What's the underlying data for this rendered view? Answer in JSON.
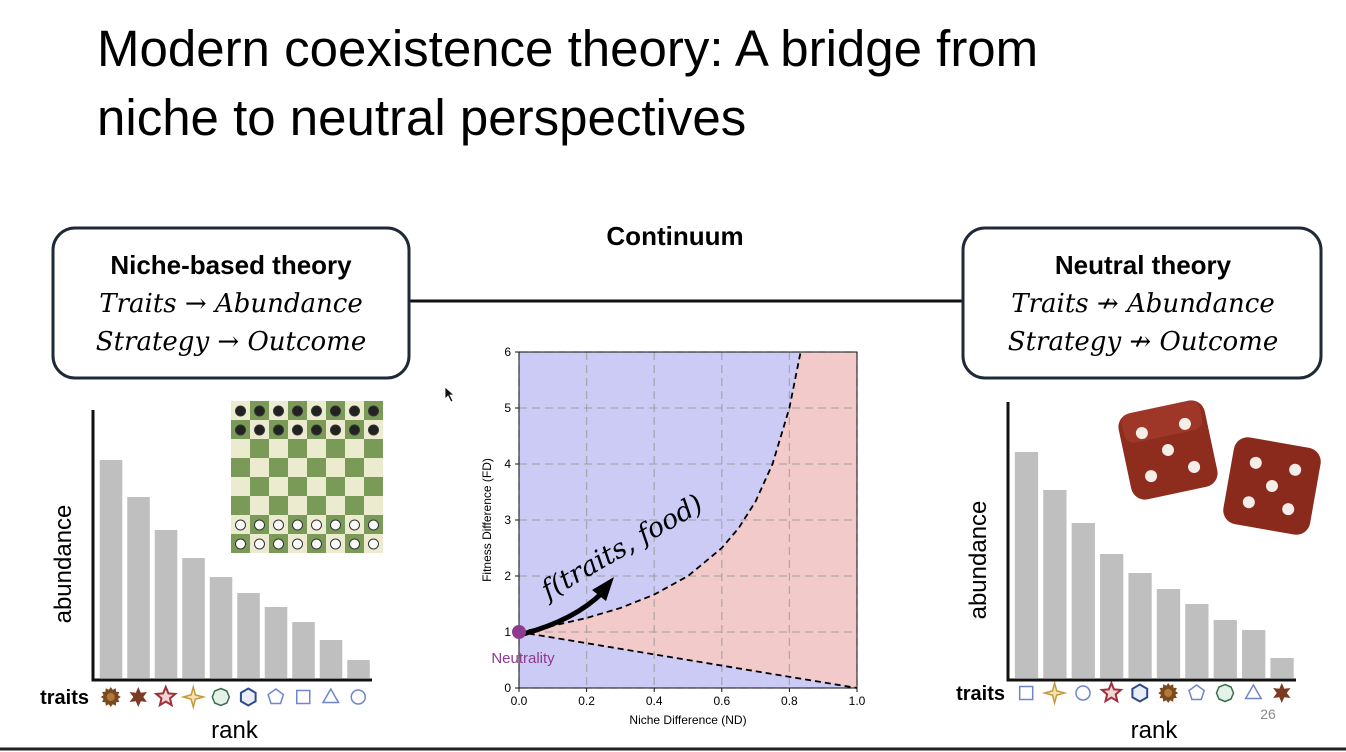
{
  "slide": {
    "title": [
      "Modern coexistence theory: A bridge from",
      "niche to neutral perspectives"
    ],
    "continuum": "Continuum",
    "page_number": "26"
  },
  "niche_box": {
    "heading": "Niche-based theory",
    "lines": [
      "Traits → Abundance",
      "Strategy → Outcome"
    ]
  },
  "neutral_box": {
    "heading": "Neutral theory",
    "lines": [
      "Traits ↛ Abundance",
      "Strategy ↛ Outcome"
    ]
  },
  "chart_data": [
    {
      "type": "bar",
      "categories": [
        null,
        null,
        null,
        null,
        null,
        null,
        null,
        null,
        null,
        null
      ],
      "values": [
        218,
        181,
        148,
        120,
        101,
        85,
        71,
        56,
        38,
        18
      ],
      "color": "#bfbfbf",
      "ylim": [
        0,
        268
      ],
      "ylabel": "abundance",
      "xlabel": "rank",
      "trait_label": "traits"
    },
    {
      "type": "line",
      "xlabel": "Niche Difference (ND)",
      "ylabel": "Fitness Difference (FD)",
      "xlim": [
        0,
        1
      ],
      "ylim": [
        0,
        6
      ],
      "xticks": [
        {
          "value": 0,
          "label": "0.0"
        },
        {
          "value": 0.2,
          "label": "0.2"
        },
        {
          "value": 0.4,
          "label": "0.4"
        },
        {
          "value": 0.6,
          "label": "0.6"
        },
        {
          "value": 0.8,
          "label": "0.8"
        },
        {
          "value": 1,
          "label": "1.0"
        }
      ],
      "yticks": [
        0,
        1,
        2,
        3,
        4,
        5,
        6
      ],
      "grid": true,
      "outside_color": "#cbcbf6",
      "between_color": "#f3caca",
      "series": [
        {
          "color": "#000000",
          "x": [
            0,
            0.1,
            0.2,
            0.3,
            0.4,
            0.5,
            0.6,
            0.65,
            0.7,
            0.75,
            0.8,
            0.833
          ],
          "values": [
            1,
            1.111,
            1.25,
            1.429,
            1.667,
            2,
            2.5,
            2.857,
            3.333,
            4,
            5,
            6
          ]
        },
        {
          "color": "#000000",
          "x": [
            0,
            1
          ],
          "values": [
            1,
            0
          ]
        }
      ],
      "point": {
        "x": 0,
        "y": 1,
        "label": "Neutrality",
        "color": "#8e3a8e"
      },
      "annotation": "f(traits, food)"
    },
    {
      "type": "bar",
      "categories": [
        null,
        null,
        null,
        null,
        null,
        null,
        null,
        null,
        null,
        null
      ],
      "values": [
        226,
        188,
        155,
        124,
        105,
        89,
        74,
        58,
        48,
        20
      ],
      "color": "#bfbfbf",
      "ylim": [
        0,
        276
      ],
      "ylabel": "abundance",
      "xlabel": "rank",
      "trait_label": "traits"
    }
  ]
}
